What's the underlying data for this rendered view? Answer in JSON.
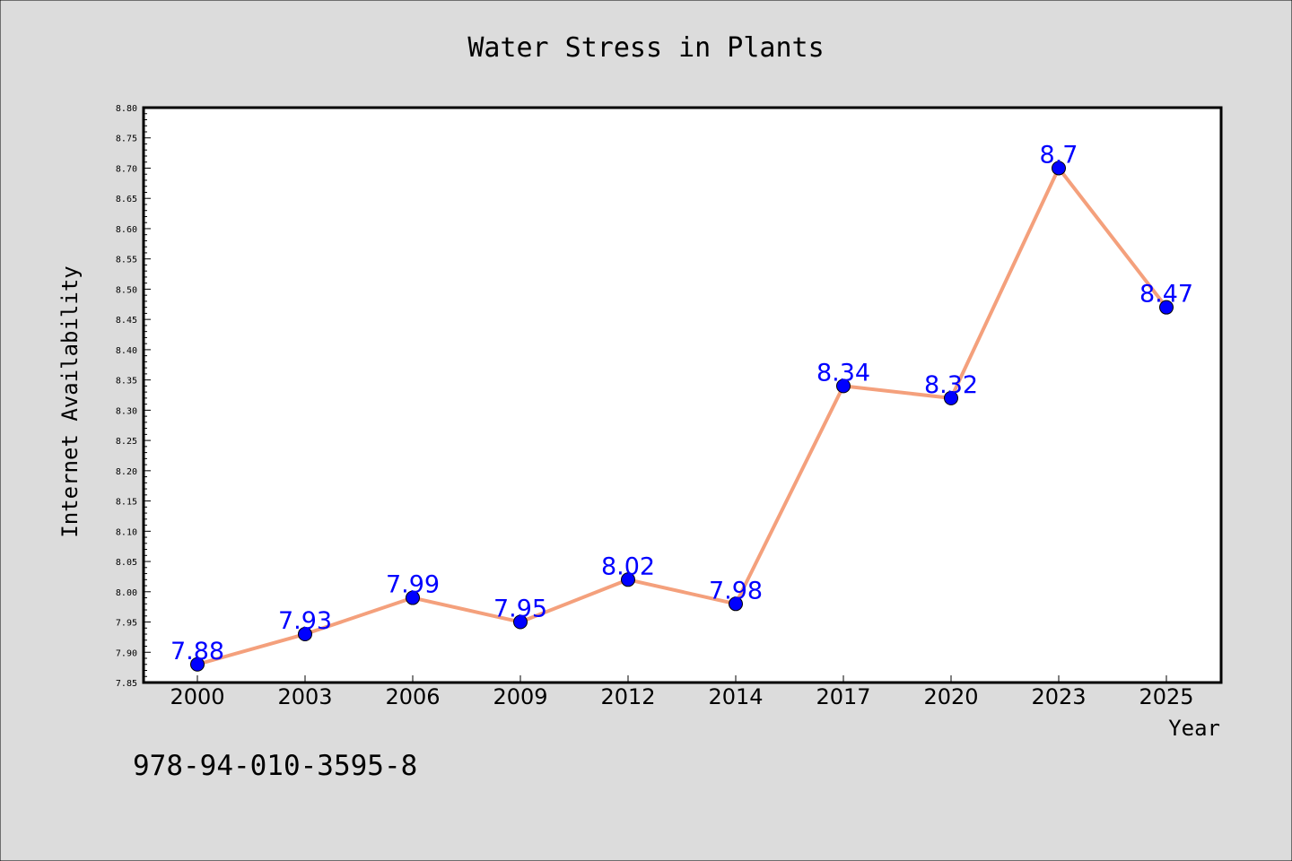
{
  "chart_data": {
    "type": "line",
    "title": "Water Stress in Plants",
    "xlabel": "Year",
    "ylabel": "Internet Availability",
    "categories": [
      "2000",
      "2003",
      "2006",
      "2009",
      "2012",
      "2014",
      "2017",
      "2020",
      "2023",
      "2025"
    ],
    "series": [
      {
        "values": [
          7.88,
          7.93,
          7.99,
          7.95,
          8.02,
          7.98,
          8.34,
          8.32,
          8.7,
          8.47
        ],
        "labels": [
          "7.88",
          "7.93",
          "7.99",
          "7.95",
          "8.02",
          "7.98",
          "8.34",
          "8.32",
          "8.7",
          "8.47"
        ]
      }
    ],
    "ylim": [
      7.85,
      8.8
    ],
    "yticks": [
      "7.85",
      "7.90",
      "7.95",
      "8.00",
      "8.05",
      "8.10",
      "8.15",
      "8.20",
      "8.25",
      "8.30",
      "8.35",
      "8.40",
      "8.45",
      "8.50",
      "8.55",
      "8.60",
      "8.65",
      "8.70",
      "8.75",
      "8.80"
    ],
    "grid": false,
    "legend": "none",
    "colors": {
      "line": "#f4a07c",
      "marker": "#0000ff",
      "data_label": "#0000ff",
      "background": "#dcdcdc",
      "plot_background": "#ffffff"
    }
  },
  "footer_text": "978-94-010-3595-8"
}
